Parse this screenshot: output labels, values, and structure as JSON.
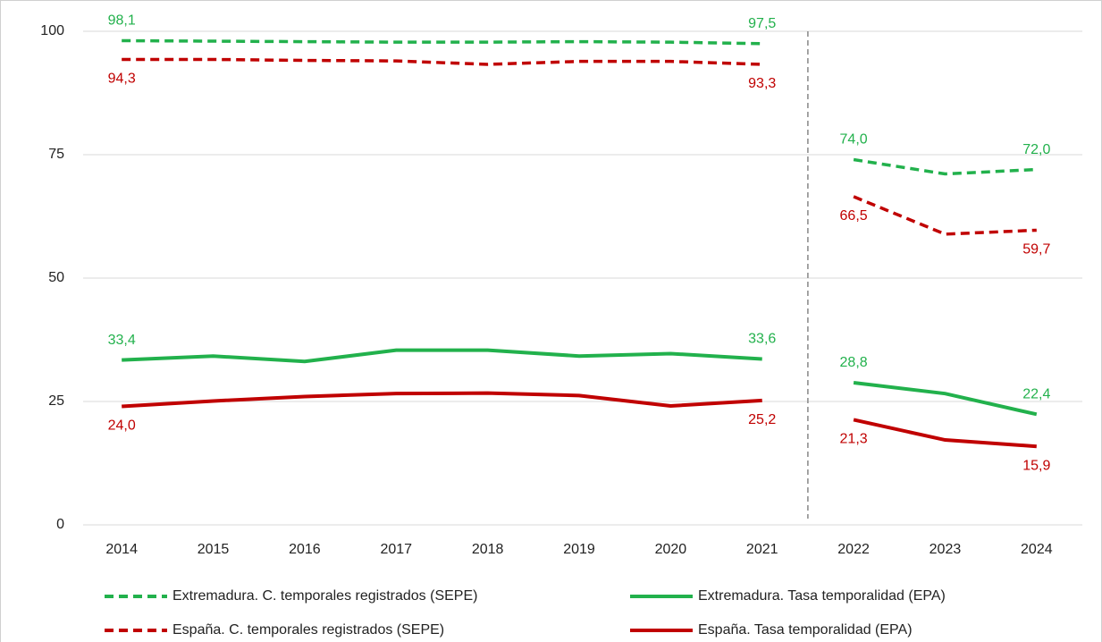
{
  "chart_data": {
    "type": "line",
    "categories": [
      "2014",
      "2015",
      "2016",
      "2017",
      "2018",
      "2019",
      "2020",
      "2021",
      "2022",
      "2023",
      "2024"
    ],
    "break_after_category": "2021",
    "series": [
      {
        "name": "Extremadura. C. temporales registrados (SEPE)",
        "color": "#22b14c",
        "dash": true,
        "label_position": "above",
        "values": [
          98.1,
          98.0,
          97.9,
          97.8,
          97.8,
          97.9,
          97.8,
          97.5,
          74.0,
          71.1,
          72.0
        ],
        "value_labels": [
          "98,1",
          null,
          null,
          null,
          null,
          null,
          null,
          "97,5",
          "74,0",
          null,
          "72,0"
        ]
      },
      {
        "name": "Extremadura. Tasa temporalidad (EPA)",
        "color": "#22b14c",
        "dash": false,
        "label_position": "above",
        "values": [
          33.4,
          34.2,
          33.1,
          35.4,
          35.4,
          34.2,
          34.7,
          33.6,
          28.8,
          26.6,
          22.4
        ],
        "value_labels": [
          "33,4",
          null,
          null,
          null,
          null,
          null,
          null,
          "33,6",
          "28,8",
          null,
          "22,4"
        ]
      },
      {
        "name": "España. C. temporales registrados (SEPE)",
        "color": "#c00000",
        "dash": true,
        "label_position": "below",
        "values": [
          94.3,
          94.3,
          94.1,
          94.0,
          93.3,
          93.9,
          93.9,
          93.3,
          66.5,
          58.9,
          59.7
        ],
        "value_labels": [
          "94,3",
          null,
          null,
          null,
          null,
          null,
          null,
          "93,3",
          "66,5",
          null,
          "59,7"
        ]
      },
      {
        "name": "España. Tasa temporalidad (EPA)",
        "color": "#c00000",
        "dash": false,
        "label_position": "below",
        "values": [
          24.0,
          25.1,
          26.0,
          26.6,
          26.7,
          26.2,
          24.1,
          25.2,
          21.3,
          17.2,
          15.9
        ],
        "value_labels": [
          "24,0",
          null,
          null,
          null,
          null,
          null,
          null,
          "25,2",
          "21,3",
          null,
          "15,9"
        ]
      }
    ],
    "ylim": [
      0,
      100
    ],
    "yticks": [
      0,
      25,
      50,
      75,
      100
    ],
    "grid": true
  }
}
